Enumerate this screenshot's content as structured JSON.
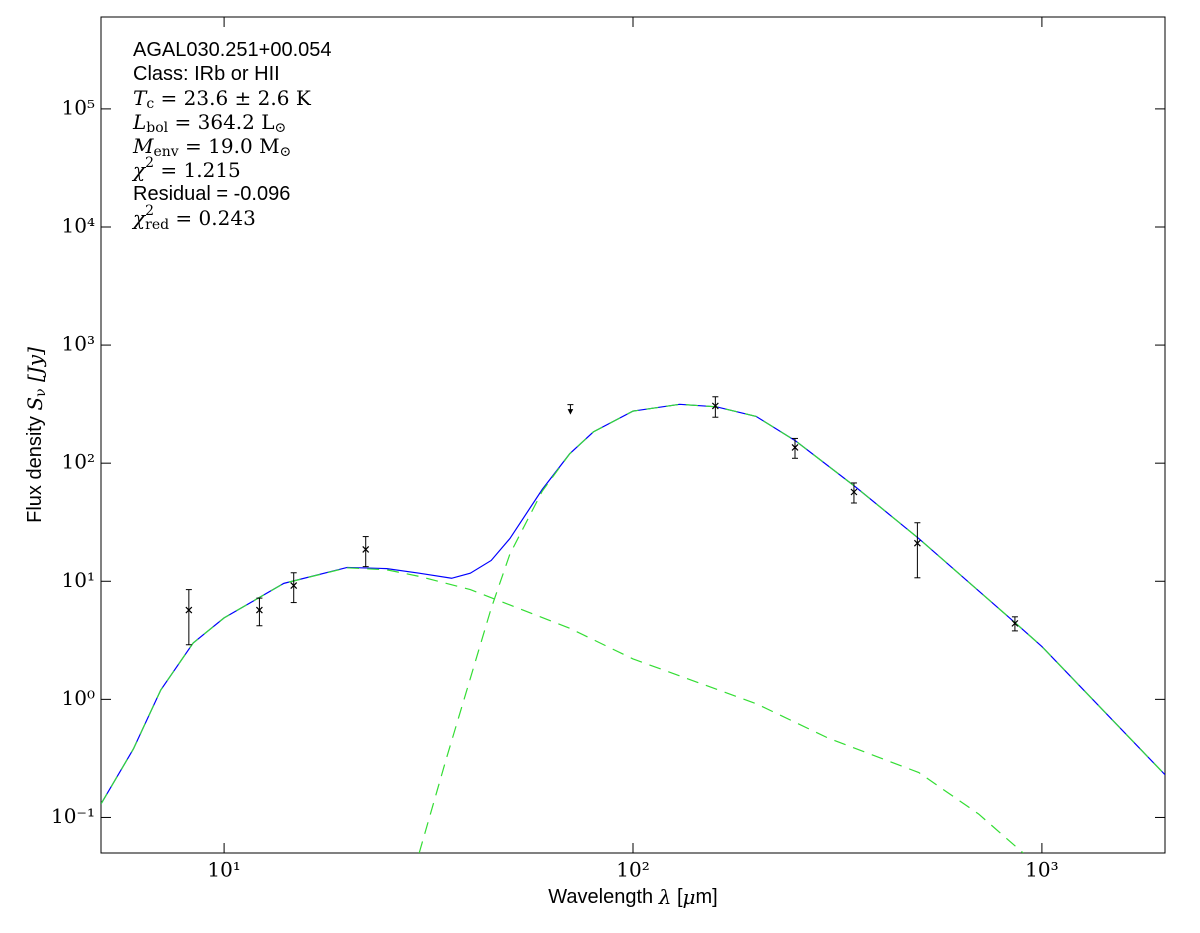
{
  "chart_data": {
    "type": "sed",
    "xscale": "log",
    "yscale": "log",
    "xlim": [
      5,
      2000
    ],
    "ylim": [
      0.05,
      600000
    ],
    "xticks": [
      {
        "value": 10,
        "label": "10¹"
      },
      {
        "value": 100,
        "label": "10²"
      },
      {
        "value": 1000,
        "label": "10³"
      }
    ],
    "yticks": [
      {
        "value": 0.1,
        "label": "10⁻¹"
      },
      {
        "value": 1,
        "label": "10⁰"
      },
      {
        "value": 10,
        "label": "10¹"
      },
      {
        "value": 100,
        "label": "10²"
      },
      {
        "value": 1000,
        "label": "10³"
      },
      {
        "value": 10000,
        "label": "10⁴"
      },
      {
        "value": 100000,
        "label": "10⁵"
      }
    ],
    "xlabel": [
      {
        "text": "Wavelength ",
        "style": "normal"
      },
      {
        "text": "λ",
        "style": "italic"
      },
      {
        "text": " [",
        "style": "normal"
      },
      {
        "text": "μ",
        "style": "italic"
      },
      {
        "text": "m]",
        "style": "normal"
      }
    ],
    "ylabel": [
      {
        "text": "Flux density ",
        "style": "normal"
      },
      {
        "text": "S",
        "style": "italic"
      },
      {
        "text": "ν",
        "style": "sub"
      },
      {
        "text": " [Jy]",
        "style": "italic"
      }
    ],
    "annotations": [
      [
        {
          "text": "AGAL030.251+00.054",
          "style": "normal"
        }
      ],
      [
        {
          "text": "Class: IRb or HII",
          "style": "normal"
        }
      ],
      [
        {
          "text": "T",
          "style": "italic"
        },
        {
          "text": "c",
          "style": "sub"
        },
        {
          "text": " = 23.6 ± 2.6 K",
          "style": "serif"
        }
      ],
      [
        {
          "text": "L",
          "style": "italic"
        },
        {
          "text": "bol",
          "style": "sub"
        },
        {
          "text": " = 364.2 L",
          "style": "serif"
        },
        {
          "text": "⊙",
          "style": "sub"
        }
      ],
      [
        {
          "text": "M",
          "style": "italic"
        },
        {
          "text": "env",
          "style": "sub"
        },
        {
          "text": " = 19.0 M",
          "style": "serif"
        },
        {
          "text": "⊙",
          "style": "sub"
        }
      ],
      [
        {
          "text": "χ",
          "style": "italic"
        },
        {
          "text": "2",
          "style": "sup"
        },
        {
          "text": " = 1.215",
          "style": "serif"
        }
      ],
      [
        {
          "text": "Residual = -0.096",
          "style": "normal"
        }
      ],
      [
        {
          "text": "χ",
          "style": "italic"
        },
        {
          "text": "2",
          "style": "sup"
        },
        {
          "text": "red",
          "style": "substack"
        },
        {
          "text": " = 0.243",
          "style": "serif"
        }
      ]
    ],
    "series": [
      {
        "color": "#0000ff",
        "dash": "solid",
        "x": [
          5,
          6,
          7,
          8.4,
          10,
          14,
          20,
          25,
          30,
          36,
          40,
          45,
          50,
          60,
          70,
          80,
          100,
          130,
          160,
          200,
          250,
          350,
          500,
          870,
          1000,
          2000
        ],
        "values": [
          0.13,
          0.38,
          1.2,
          3.0,
          4.9,
          9.6,
          13.1,
          12.8,
          11.7,
          10.6,
          11.7,
          15,
          23,
          60,
          120,
          184,
          276,
          315,
          300,
          249,
          154,
          63,
          23,
          4.3,
          2.8,
          0.23
        ]
      },
      {
        "color": "#33dd33",
        "dash": "dashed",
        "x": [
          5,
          6,
          7,
          8.4,
          10,
          14,
          20,
          25,
          30,
          40,
          50,
          70,
          100,
          200,
          300,
          500,
          700,
          900
        ],
        "values": [
          0.13,
          0.38,
          1.2,
          3.0,
          4.9,
          9.6,
          13,
          12.5,
          11,
          8.5,
          6.3,
          4,
          2.2,
          0.92,
          0.47,
          0.24,
          0.107,
          0.05
        ]
      },
      {
        "color": "#33dd33",
        "dash": "dashed",
        "x": [
          30,
          35,
          40,
          45,
          50,
          60,
          70,
          80,
          100,
          130,
          160,
          200,
          250,
          350,
          500,
          870,
          1000,
          2000
        ],
        "values": [
          0.05,
          0.32,
          1.5,
          5.9,
          17,
          58,
          120,
          184,
          276,
          315,
          300,
          249,
          154,
          63,
          23,
          4.3,
          2.8,
          0.23
        ]
      }
    ],
    "points": {
      "x": [
        8.2,
        12.2,
        14.8,
        22.2,
        159,
        249,
        347,
        496,
        859
      ],
      "values": [
        5.7,
        5.7,
        9.2,
        18.6,
        305,
        136,
        57,
        21,
        4.4
      ],
      "errors": [
        2.8,
        1.5,
        2.6,
        5.3,
        60,
        26,
        11,
        10.3,
        0.6
      ],
      "color": "#000000"
    },
    "upper_limits": {
      "x": [
        70.3
      ],
      "values": [
        290
      ],
      "color": "#000000"
    }
  }
}
